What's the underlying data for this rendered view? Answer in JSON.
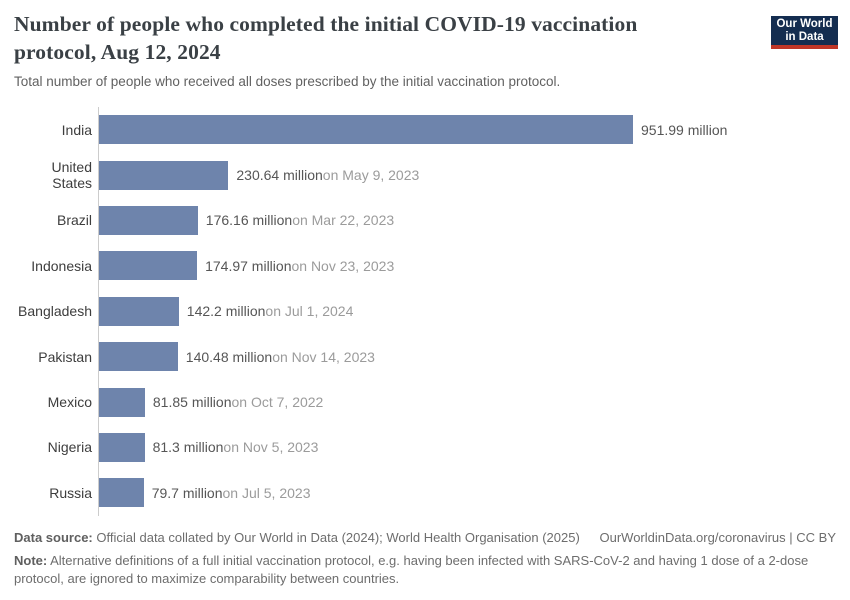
{
  "header": {
    "title": "Number of people who completed the initial COVID-19 vaccination protocol, Aug 12, 2024",
    "subtitle": "Total number of people who received all doses prescribed by the initial vaccination protocol."
  },
  "logo": {
    "line1": "Our World",
    "line2": "in Data"
  },
  "chart_data": {
    "type": "bar",
    "orientation": "horizontal",
    "title": "Number of people who completed the initial COVID-19 vaccination protocol, Aug 12, 2024",
    "unit": "million",
    "xlim": [
      0,
      951.99
    ],
    "grid": false,
    "legend": false,
    "categories": [
      "India",
      "United States",
      "Brazil",
      "Indonesia",
      "Bangladesh",
      "Pakistan",
      "Mexico",
      "Nigeria",
      "Russia"
    ],
    "values": [
      951.99,
      230.64,
      176.16,
      174.97,
      142.2,
      140.48,
      81.85,
      81.3,
      79.7
    ],
    "bars": [
      {
        "country": "India",
        "value": 951.99,
        "value_label": "951.99 million",
        "date_label": ""
      },
      {
        "country": "United States",
        "value": 230.64,
        "value_label": "230.64 million",
        "date_label": "on May 9, 2023"
      },
      {
        "country": "Brazil",
        "value": 176.16,
        "value_label": "176.16 million",
        "date_label": "on Mar 22, 2023"
      },
      {
        "country": "Indonesia",
        "value": 174.97,
        "value_label": "174.97 million",
        "date_label": "on Nov 23, 2023"
      },
      {
        "country": "Bangladesh",
        "value": 142.2,
        "value_label": "142.2 million",
        "date_label": "on Jul 1, 2024"
      },
      {
        "country": "Pakistan",
        "value": 140.48,
        "value_label": "140.48 million",
        "date_label": "on Nov 14, 2023"
      },
      {
        "country": "Mexico",
        "value": 81.85,
        "value_label": "81.85 million",
        "date_label": "on Oct 7, 2022"
      },
      {
        "country": "Nigeria",
        "value": 81.3,
        "value_label": "81.3 million",
        "date_label": "on Nov 5, 2023"
      },
      {
        "country": "Russia",
        "value": 79.7,
        "value_label": "79.7 million",
        "date_label": "on Jul 5, 2023"
      }
    ]
  },
  "footer": {
    "data_source_label": "Data source:",
    "data_source_text": "Official data collated by Our World in Data (2024); World Health Organisation (2025)",
    "attribution": "OurWorldinData.org/coronavirus | CC BY",
    "note_label": "Note:",
    "note_text": "Alternative definitions of a full initial vaccination protocol, e.g. having been infected with SARS-CoV-2 and having 1 dose of a 2-dose protocol, are ignored to maximize comparability between countries."
  },
  "colors": {
    "bar": "#6e84ac",
    "axis_line": "#cccccc",
    "title_text": "#3a4045",
    "subtitle_text": "#616161",
    "country_label": "#3d3d3d",
    "value_text": "#565656",
    "date_text": "#9b9b9b",
    "footer_text": "#6d6d6d",
    "logo_background": "#142d50",
    "logo_stripe": "#bf3627"
  }
}
